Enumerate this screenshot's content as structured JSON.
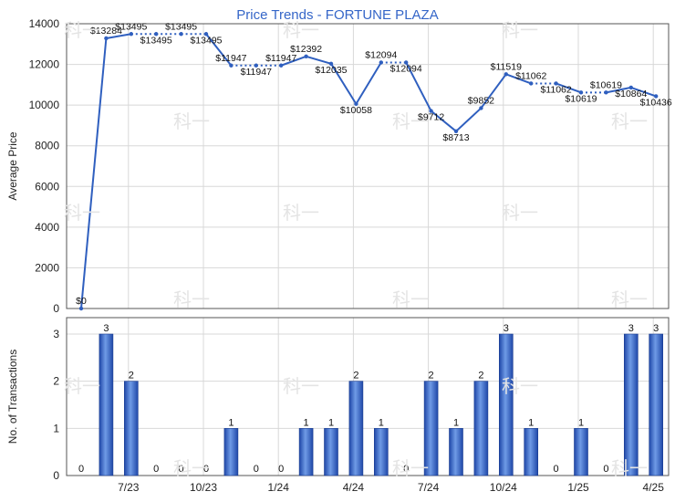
{
  "chart_data": [
    {
      "type": "line",
      "title": "Price Trends - FORTUNE PLAZA",
      "ylabel": "Average Price",
      "ylim": [
        0,
        14000
      ],
      "yticks": [
        0,
        2000,
        4000,
        6000,
        8000,
        10000,
        12000,
        14000
      ],
      "xtick_labels": [
        "7/23",
        "10/23",
        "1/24",
        "4/24",
        "7/24",
        "10/24",
        "1/25",
        "4/25"
      ],
      "grid": true,
      "series": [
        {
          "values": [
            0,
            13284,
            13495,
            13495,
            13495,
            13495,
            11947,
            11947,
            11947,
            12392,
            12035,
            10058,
            12094,
            12094,
            9712,
            8713,
            9852,
            11519,
            11062,
            11062,
            10619,
            10619,
            10864,
            10436
          ],
          "labels": [
            "$0",
            "$13284",
            "$13495",
            "$13495",
            "$13495",
            "$13495",
            "$11947",
            "$11947",
            "$11947",
            "$12392",
            "$12035",
            "$10058",
            "$12094",
            "$12094",
            "$9712",
            "$8713",
            "$9852",
            "$11519",
            "$11062",
            "$11062",
            "$10619",
            "$10619",
            "$10864",
            "$10436"
          ]
        }
      ]
    },
    {
      "type": "bar",
      "ylabel": "No. of Transactions",
      "ylim": [
        0,
        3
      ],
      "yticks": [
        0,
        1,
        2,
        3
      ],
      "xtick_labels": [
        "7/23",
        "10/23",
        "1/24",
        "4/24",
        "7/24",
        "10/24",
        "1/25",
        "4/25"
      ],
      "grid": true,
      "series": [
        {
          "values": [
            0,
            3,
            2,
            0,
            0,
            0,
            1,
            0,
            0,
            1,
            1,
            2,
            1,
            0,
            2,
            1,
            2,
            3,
            1,
            0,
            1,
            0,
            3,
            3
          ]
        }
      ]
    }
  ]
}
